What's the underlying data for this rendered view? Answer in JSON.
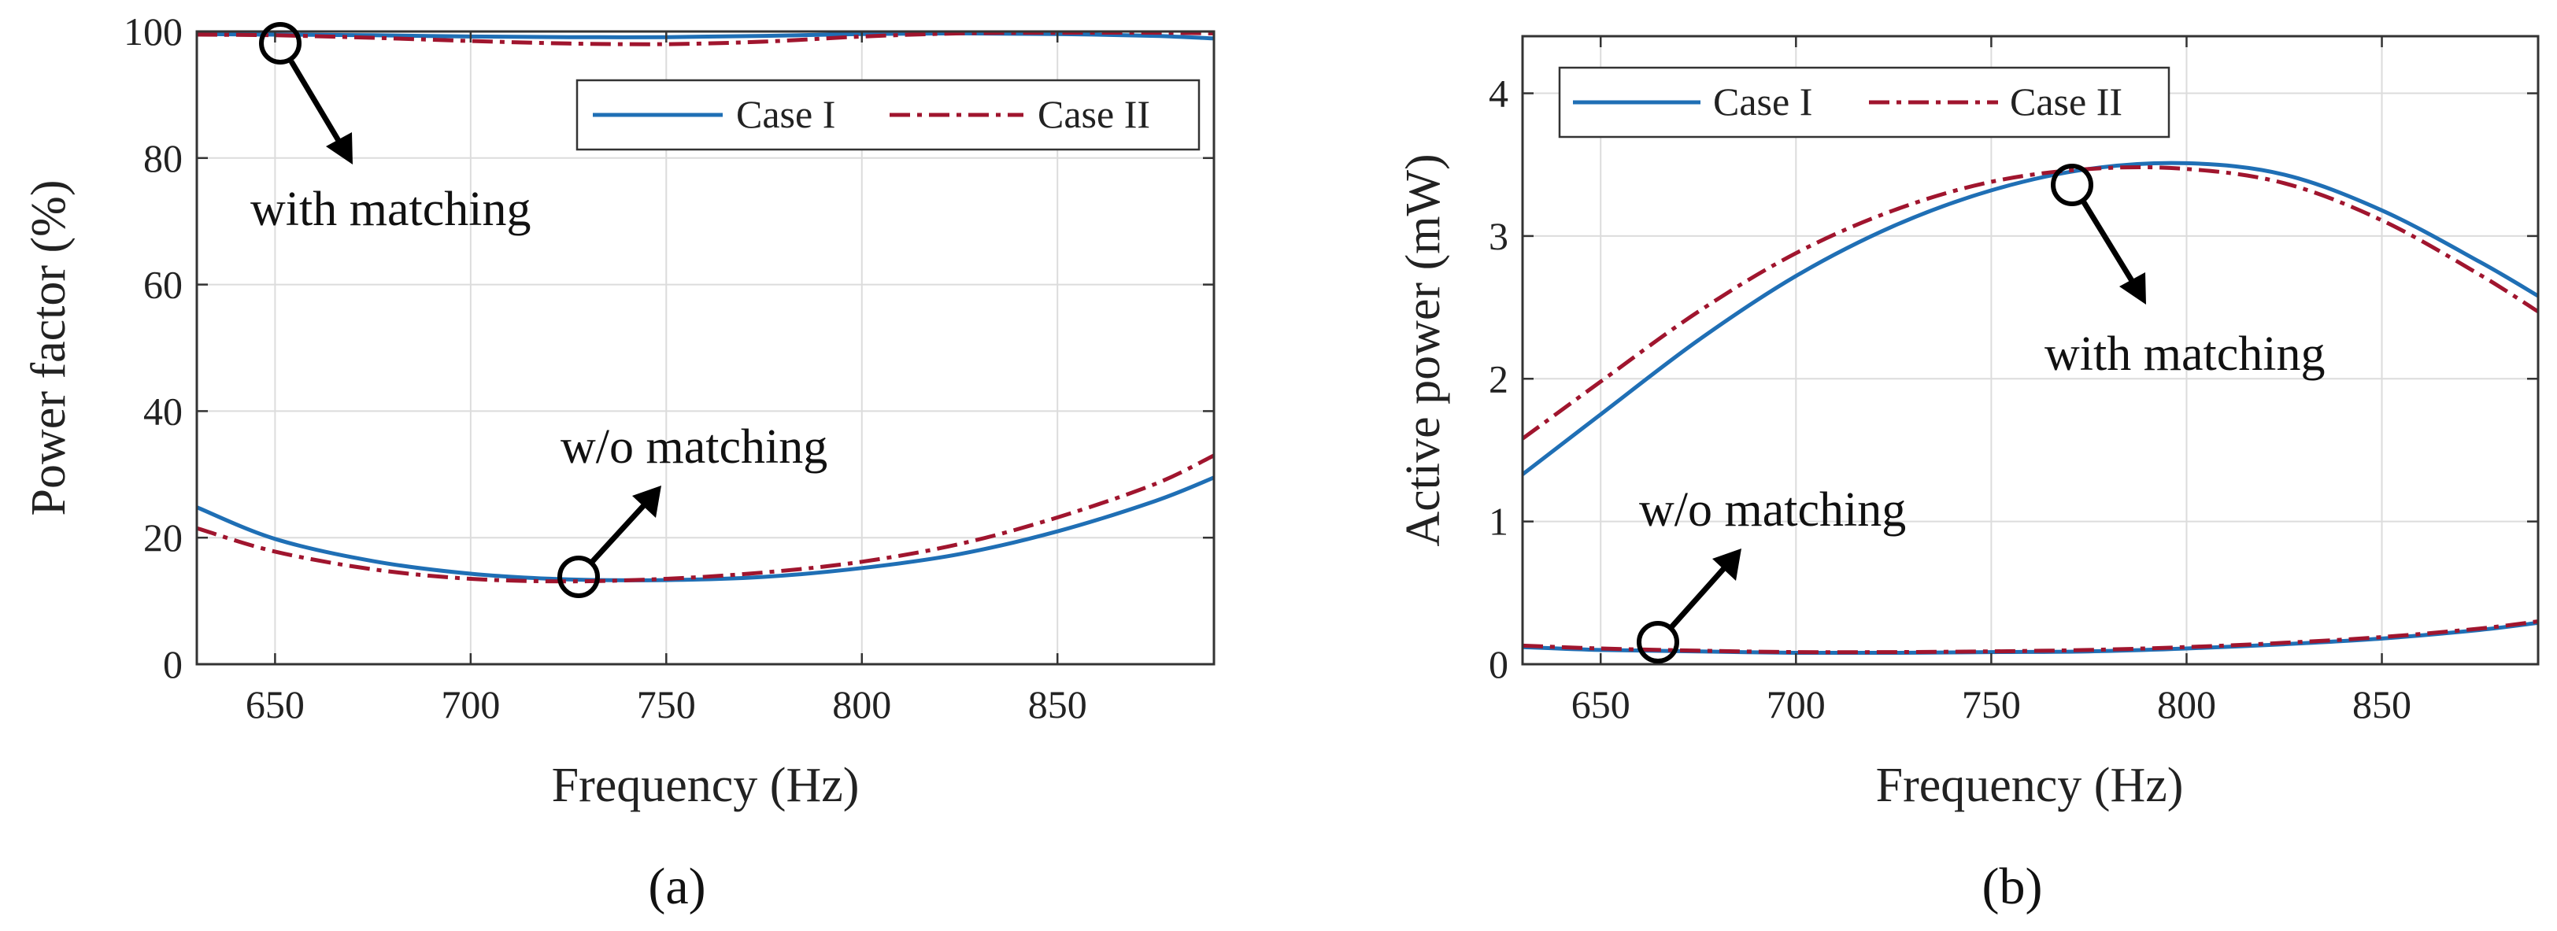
{
  "chart_data": [
    {
      "type": "line",
      "panel_label": "(a)",
      "title": "",
      "xlabel": "Frequency (Hz)",
      "ylabel": "Power factor (%)",
      "xlim": [
        630,
        890
      ],
      "ylim": [
        0,
        100
      ],
      "xticks": [
        650,
        700,
        750,
        800,
        850
      ],
      "yticks": [
        0,
        20,
        40,
        60,
        80,
        100
      ],
      "grid": true,
      "legend_position": "top-right",
      "x": [
        630,
        650,
        675,
        700,
        725,
        750,
        775,
        800,
        825,
        850,
        875,
        890
      ],
      "series": [
        {
          "name": "Case I",
          "style": "solid",
          "color": "#1f6fb5",
          "group": "with matching",
          "values": [
            99.6,
            99.5,
            99.4,
            99.2,
            99.1,
            99.1,
            99.3,
            99.6,
            99.7,
            99.6,
            99.3,
            98.9
          ]
        },
        {
          "name": "Case II",
          "style": "dashdot",
          "color": "#a0152e",
          "group": "with matching",
          "values": [
            99.5,
            99.4,
            99.0,
            98.5,
            98.1,
            98.0,
            98.4,
            99.2,
            99.7,
            99.8,
            99.8,
            99.7
          ]
        },
        {
          "name": "Case I",
          "style": "solid",
          "color": "#1f6fb5",
          "group": "w/o matching",
          "values": [
            24.8,
            19.8,
            16.3,
            14.3,
            13.4,
            13.3,
            13.8,
            15.2,
            17.4,
            21.0,
            25.8,
            29.5
          ]
        },
        {
          "name": "Case II",
          "style": "dashdot",
          "color": "#a0152e",
          "group": "w/o matching",
          "values": [
            21.5,
            17.8,
            15.0,
            13.5,
            13.1,
            13.5,
            14.5,
            16.2,
            19.0,
            23.2,
            28.5,
            33.0
          ]
        }
      ],
      "legend": [
        "Case I",
        "Case II"
      ],
      "annotations": [
        {
          "text": "with matching",
          "circle_at": [
            651,
            100
          ]
        },
        {
          "text": "w/o matching",
          "circle_at": [
            728,
            13.5
          ]
        }
      ]
    },
    {
      "type": "line",
      "panel_label": "(b)",
      "title": "",
      "xlabel": "Frequency (Hz)",
      "ylabel": "Active power (mW)",
      "xlim": [
        630,
        890
      ],
      "ylim": [
        0,
        4.4
      ],
      "xticks": [
        650,
        700,
        750,
        800,
        850
      ],
      "yticks": [
        0,
        1,
        2,
        3,
        4
      ],
      "grid": true,
      "legend_position": "top-left",
      "x": [
        630,
        650,
        675,
        700,
        725,
        750,
        775,
        800,
        825,
        850,
        875,
        890
      ],
      "series": [
        {
          "name": "Case I",
          "style": "solid",
          "color": "#1f6fb5",
          "group": "with matching",
          "values": [
            1.33,
            1.75,
            2.27,
            2.72,
            3.07,
            3.32,
            3.47,
            3.51,
            3.43,
            3.18,
            2.82,
            2.58
          ]
        },
        {
          "name": "Case II",
          "style": "dashdot",
          "color": "#a0152e",
          "group": "with matching",
          "values": [
            1.58,
            1.98,
            2.47,
            2.88,
            3.18,
            3.38,
            3.47,
            3.47,
            3.37,
            3.11,
            2.73,
            2.47
          ]
        },
        {
          "name": "Case I",
          "style": "solid",
          "color": "#1f6fb5",
          "group": "w/o matching",
          "values": [
            0.12,
            0.1,
            0.09,
            0.08,
            0.08,
            0.085,
            0.09,
            0.11,
            0.14,
            0.18,
            0.24,
            0.29
          ]
        },
        {
          "name": "Case II",
          "style": "dashdot",
          "color": "#a0152e",
          "group": "w/o matching",
          "values": [
            0.13,
            0.11,
            0.095,
            0.085,
            0.085,
            0.09,
            0.1,
            0.12,
            0.15,
            0.19,
            0.25,
            0.3
          ]
        }
      ],
      "legend": [
        "Case I",
        "Case II"
      ],
      "annotations": [
        {
          "text": "with matching",
          "circle_at": [
            770,
            3.37
          ]
        },
        {
          "text": "w/o matching",
          "circle_at": [
            665,
            0.12
          ]
        }
      ]
    }
  ]
}
